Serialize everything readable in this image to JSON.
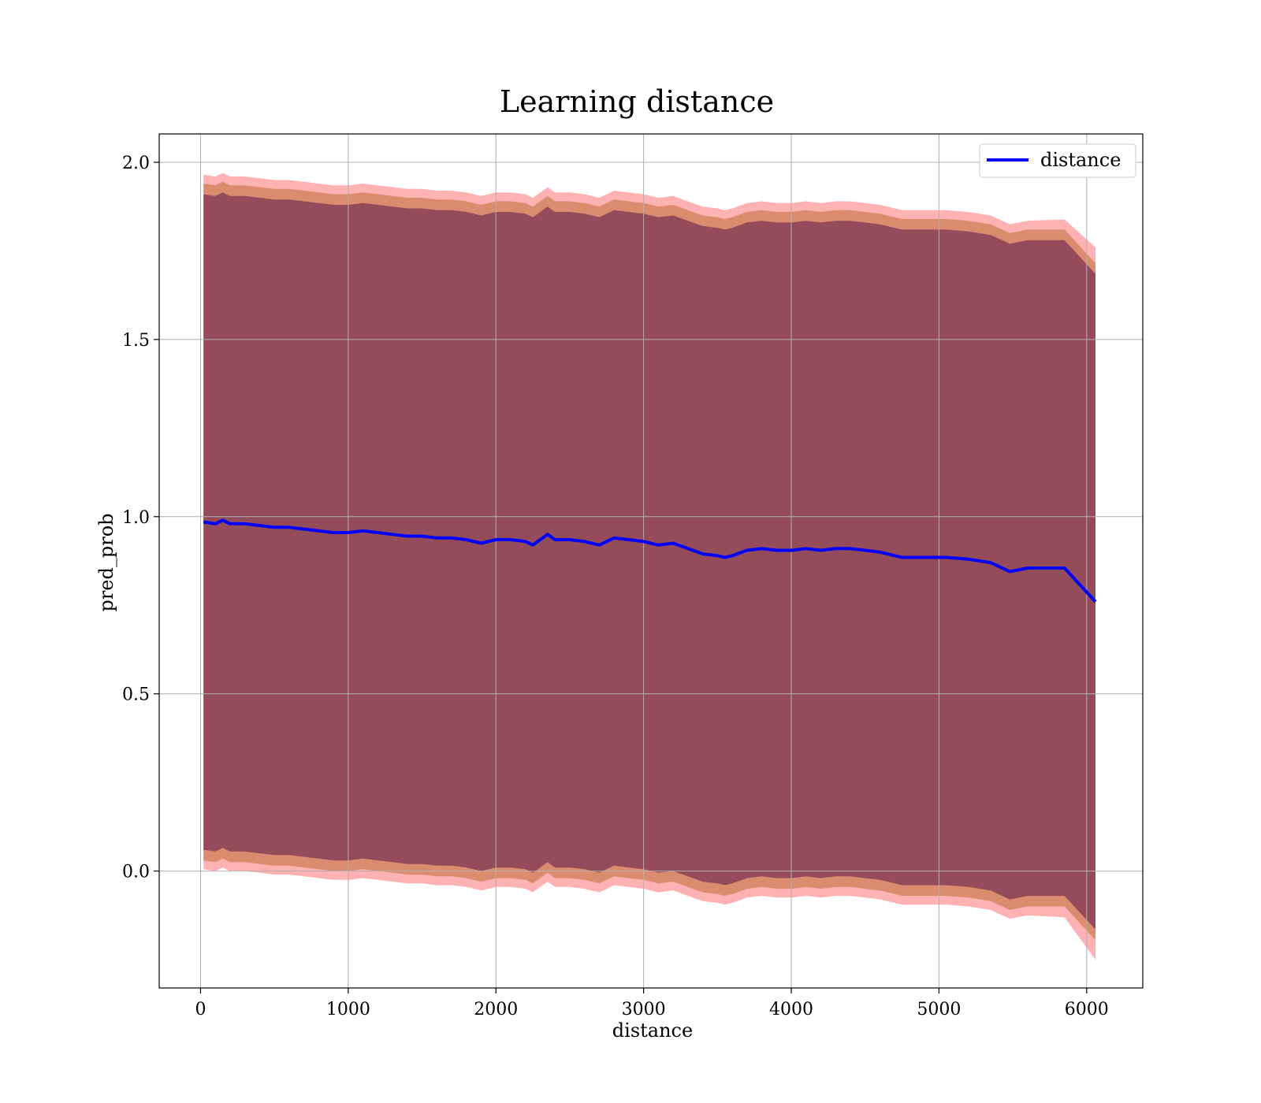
{
  "chart_data": {
    "type": "line",
    "title": "Learning distance",
    "xlabel": "distance",
    "ylabel": "pred_prob",
    "xlim": [
      -280,
      6380
    ],
    "ylim": [
      -0.33,
      2.08
    ],
    "x_ticks": [
      0,
      1000,
      2000,
      3000,
      4000,
      5000,
      6000
    ],
    "y_ticks": [
      0.0,
      0.5,
      1.0,
      1.5,
      2.0
    ],
    "x_tick_labels": [
      "0",
      "1000",
      "2000",
      "3000",
      "4000",
      "5000",
      "6000"
    ],
    "y_tick_labels": [
      "0.0",
      "0.5",
      "1.0",
      "1.5",
      "2.0"
    ],
    "grid": true,
    "legend": {
      "position": "top-right",
      "entries": [
        "distance"
      ]
    },
    "series": [
      {
        "name": "distance",
        "color": "#0000ff",
        "x": [
          20,
          100,
          150,
          200,
          300,
          400,
          500,
          600,
          700,
          800,
          900,
          1000,
          1100,
          1200,
          1300,
          1400,
          1500,
          1600,
          1700,
          1800,
          1900,
          2000,
          2100,
          2200,
          2250,
          2300,
          2350,
          2400,
          2500,
          2600,
          2700,
          2800,
          2900,
          3000,
          3100,
          3200,
          3300,
          3400,
          3500,
          3550,
          3600,
          3700,
          3800,
          3900,
          4000,
          4100,
          4200,
          4300,
          4400,
          4500,
          4600,
          4700,
          4750,
          4800,
          4900,
          5000,
          5050,
          5200,
          5350,
          5480,
          5600,
          5850,
          6060
        ],
        "y": [
          0.985,
          0.98,
          0.99,
          0.98,
          0.98,
          0.975,
          0.97,
          0.97,
          0.965,
          0.96,
          0.955,
          0.955,
          0.96,
          0.955,
          0.95,
          0.945,
          0.945,
          0.94,
          0.94,
          0.935,
          0.925,
          0.935,
          0.935,
          0.93,
          0.92,
          0.935,
          0.95,
          0.935,
          0.935,
          0.93,
          0.92,
          0.94,
          0.935,
          0.93,
          0.92,
          0.925,
          0.91,
          0.895,
          0.89,
          0.885,
          0.89,
          0.905,
          0.91,
          0.905,
          0.905,
          0.91,
          0.905,
          0.91,
          0.91,
          0.905,
          0.9,
          0.89,
          0.885,
          0.885,
          0.885,
          0.885,
          0.885,
          0.88,
          0.87,
          0.845,
          0.855,
          0.855,
          0.76
        ]
      }
    ],
    "bands": [
      {
        "color": "#ff0000",
        "opacity": 0.3,
        "offset": 0.98,
        "taper_extra": 0.02
      },
      {
        "color": "#b05a1a",
        "opacity": 0.45,
        "offset": 0.955,
        "taper_extra": 0.0
      },
      {
        "color": "#5a1a4a",
        "opacity": 0.55,
        "offset": 0.925,
        "taper_extra": 0.0
      }
    ]
  }
}
